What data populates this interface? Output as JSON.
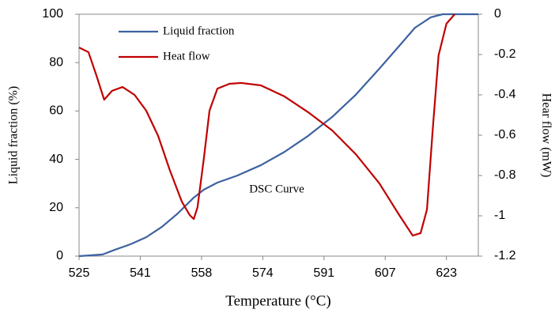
{
  "chart_data": {
    "type": "line",
    "xlabel": "Temperature (°C)",
    "ylabel": "Liquid fraction (%)",
    "y2label": "Hear flow (mW)",
    "annotation": "DSC Curve",
    "xlim": [
      525,
      631.5
    ],
    "xticks": [
      {
        "value": 525,
        "label": "525"
      },
      {
        "value": 541.33,
        "label": "541"
      },
      {
        "value": 557.67,
        "label": "558"
      },
      {
        "value": 574,
        "label": "574"
      },
      {
        "value": 590.33,
        "label": "591"
      },
      {
        "value": 606.67,
        "label": "607"
      },
      {
        "value": 623,
        "label": "623"
      }
    ],
    "ylim": [
      0,
      100
    ],
    "yticks": [
      0,
      20,
      40,
      60,
      80,
      100
    ],
    "y2lim": [
      -1.2,
      0
    ],
    "y2ticks": [
      0,
      -0.2,
      -0.4,
      -0.6,
      -0.8,
      -1,
      -1.2
    ],
    "legend": "upper left",
    "series": [
      {
        "name": "Liquid fraction",
        "color": "#3d62a0",
        "x": [
          525,
          531.3,
          534.5,
          538.7,
          542.9,
          547.1,
          551.3,
          555.6,
          558.3,
          561.9,
          567.2,
          573.5,
          579.8,
          586.1,
          592.5,
          598.8,
          605.1,
          610.4,
          614.6,
          618.8,
          622.0,
          631.5
        ],
        "values": [
          0,
          0.7,
          2.6,
          4.9,
          7.8,
          12.1,
          17.6,
          24.2,
          27.5,
          30.4,
          33.3,
          37.6,
          43.1,
          49.7,
          57.5,
          66.7,
          77.5,
          86.9,
          94.4,
          98.7,
          100,
          100
        ]
      },
      {
        "name": "Heat flow",
        "color": "#c00000",
        "axis": "y2",
        "x": [
          525,
          527.5,
          529.6,
          531.7,
          533.8,
          536.6,
          539.8,
          542.9,
          546.1,
          549.2,
          552.4,
          554.5,
          555.6,
          556.6,
          558.3,
          559.8,
          561.9,
          565.1,
          568.3,
          573.5,
          579.8,
          586.1,
          592.5,
          598.8,
          605.1,
          610.4,
          614.0,
          616.1,
          617.8,
          619.4,
          620.9,
          623.0,
          625.2
        ],
        "values": [
          -0.165,
          -0.188,
          -0.302,
          -0.424,
          -0.38,
          -0.361,
          -0.4,
          -0.478,
          -0.604,
          -0.773,
          -0.929,
          -0.996,
          -1.016,
          -0.957,
          -0.714,
          -0.478,
          -0.369,
          -0.345,
          -0.341,
          -0.353,
          -0.408,
          -0.486,
          -0.576,
          -0.694,
          -0.839,
          -0.996,
          -1.098,
          -1.086,
          -0.969,
          -0.557,
          -0.204,
          -0.047,
          0
        ]
      }
    ]
  }
}
